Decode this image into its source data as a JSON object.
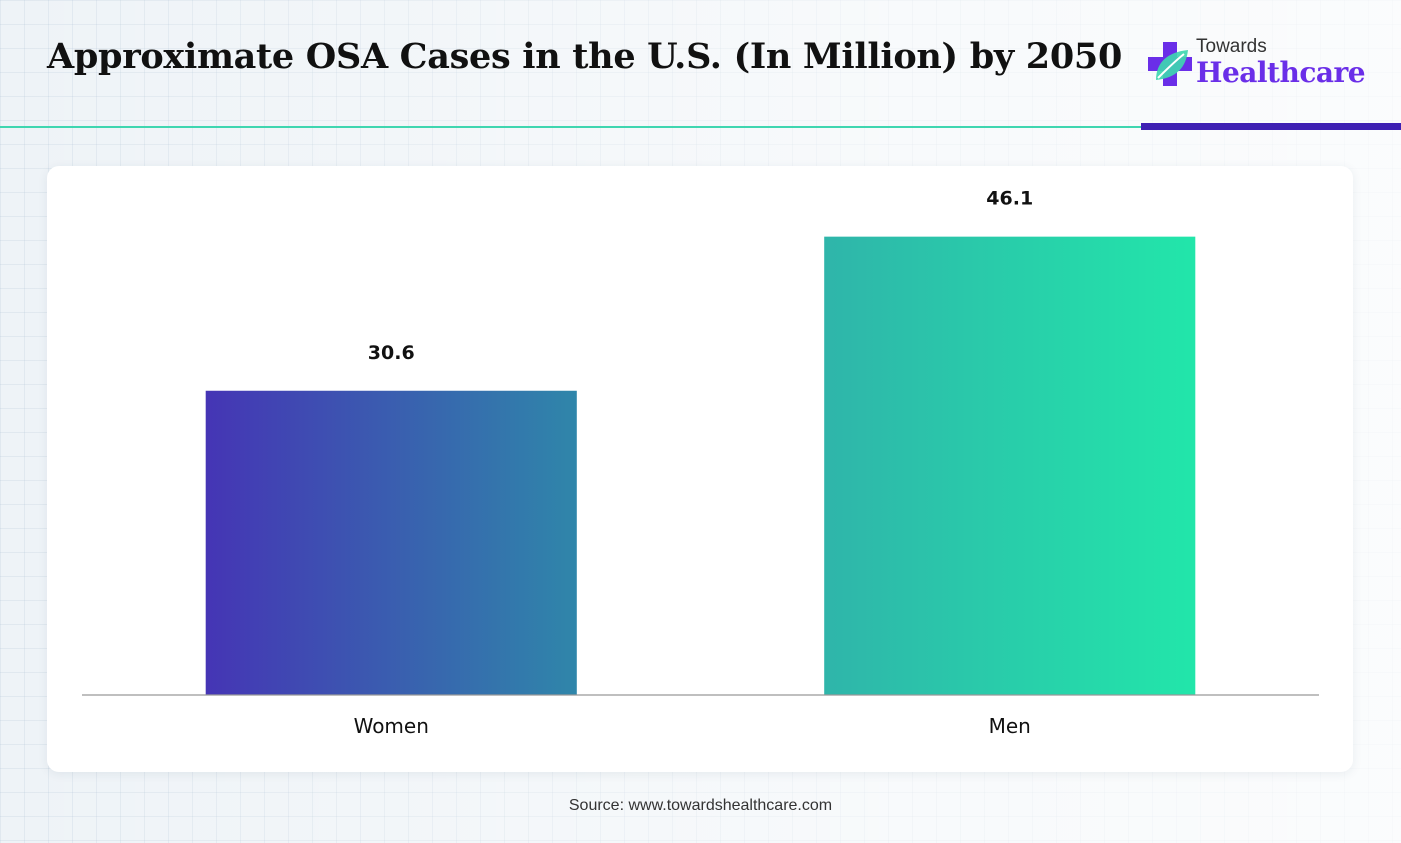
{
  "title": "Approximate OSA Cases in the U.S. (In Million) by 2050",
  "logo": {
    "top_text": "Towards",
    "bottom_text": "Healthcare",
    "icon": "medical-cross-leaf-icon"
  },
  "source": "Source: www.towardshealthcare.com",
  "colors": {
    "women_bar_start": "#4535b5",
    "women_bar_end": "#2f86aa",
    "men_bar_start": "#2fb5aa",
    "men_bar_end": "#22e6aa",
    "teal_rule": "#3fd6b0",
    "purple_rule": "#3d1fb3",
    "logo_purple": "#6a2ee8",
    "logo_green": "#3fd6b0"
  },
  "chart_data": {
    "type": "bar",
    "title": "Approximate OSA Cases in the U.S. (In Million) by 2050",
    "categories": [
      "Women",
      "Men"
    ],
    "values": [
      30.6,
      46.1
    ],
    "data_labels": [
      "30.6",
      "46.1"
    ],
    "xlabel": "",
    "ylabel": "",
    "ylim": [
      0,
      52.2
    ],
    "grid": false,
    "legend": "none"
  }
}
